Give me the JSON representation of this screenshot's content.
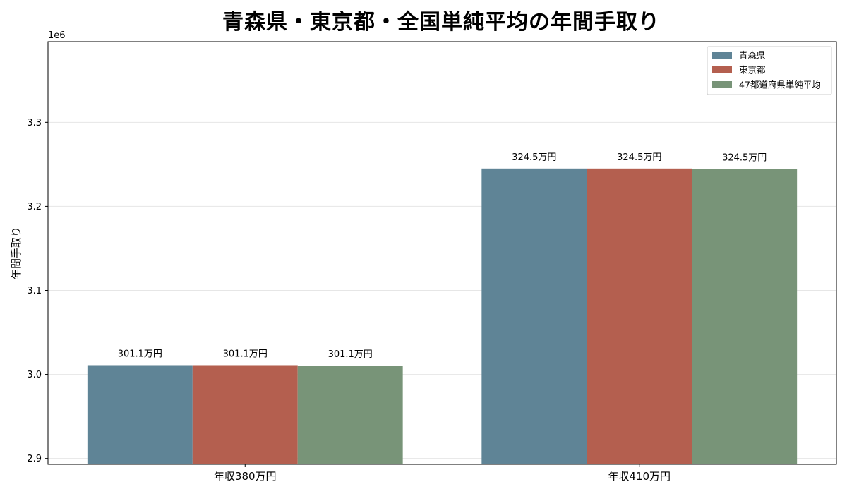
{
  "chart_data": {
    "type": "bar",
    "title": "青森県・東京都・全国単純平均の年間手取り",
    "xlabel": "",
    "ylabel": "年間手取り",
    "offset_text": "1e6",
    "categories": [
      "年収380万円",
      "年収410万円"
    ],
    "series": [
      {
        "name": "青森県",
        "color": "#5f8496",
        "values": [
          3011000,
          3245000
        ],
        "labels": [
          "301.1万円",
          "324.5万円"
        ]
      },
      {
        "name": "東京都",
        "color": "#b45f4f",
        "values": [
          3011000,
          3245000
        ],
        "labels": [
          "301.1万円",
          "324.5万円"
        ]
      },
      {
        "name": "47都道府県単純平均",
        "color": "#789478",
        "values": [
          3010500,
          3244500
        ],
        "labels": [
          "301.1万円",
          "324.5万円"
        ]
      }
    ],
    "ylim": [
      2893000,
      3396000
    ],
    "yticks": [
      2900000,
      3000000,
      3100000,
      3200000,
      3300000
    ],
    "ytick_labels": [
      "2.9",
      "3.0",
      "3.1",
      "3.2",
      "3.3"
    ],
    "grid": true,
    "legend_position": "top-right"
  }
}
